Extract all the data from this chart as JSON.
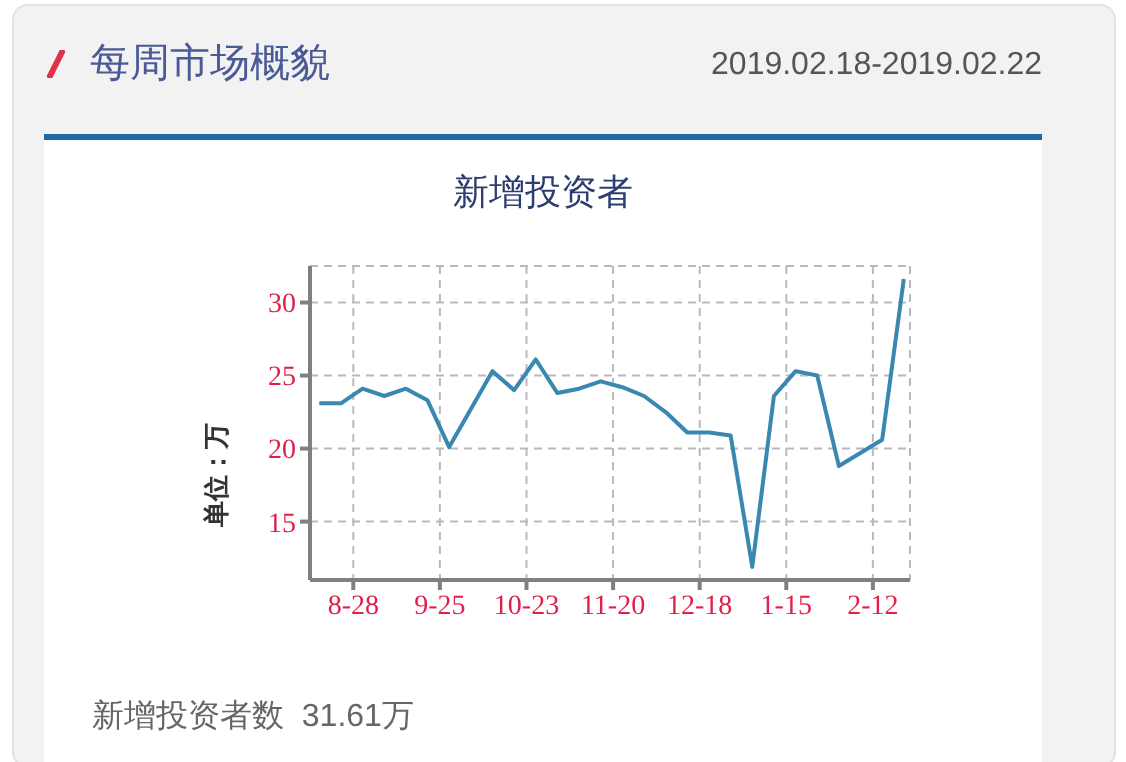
{
  "chart_data": {
    "type": "line",
    "title": "新增投资者",
    "ylabel": "单位：万",
    "annotations": [
      "每周市场概貌",
      "2019.02.18-2019.02.22",
      "新增投资者数  31.61万"
    ],
    "x": [
      "2018-08-17",
      "2018-08-24",
      "2018-08-31",
      "2018-09-07",
      "2018-09-14",
      "2018-09-21",
      "2018-09-28",
      "2018-10-12",
      "2018-10-19",
      "2018-10-26",
      "2018-11-02",
      "2018-11-09",
      "2018-11-16",
      "2018-11-23",
      "2018-11-30",
      "2018-12-07",
      "2018-12-14",
      "2018-12-21",
      "2018-12-28",
      "2019-01-04",
      "2019-01-11",
      "2019-01-18",
      "2019-01-25",
      "2019-02-01",
      "2019-02-15",
      "2019-02-22"
    ],
    "series": [
      {
        "color": "#3a87b0",
        "values": [
          23.1,
          23.1,
          24.1,
          23.6,
          24.1,
          23.3,
          20.1,
          25.3,
          24.0,
          26.1,
          23.8,
          24.1,
          24.6,
          24.2,
          23.6,
          22.5,
          21.1,
          21.1,
          20.9,
          11.9,
          23.6,
          25.3,
          25.0,
          18.8,
          20.6,
          31.61
        ]
      }
    ],
    "xlim": [
      "2018-08-14",
      "2019-02-24"
    ],
    "xticks": [
      {
        "value": "2018-08-28",
        "label": "8-28"
      },
      {
        "value": "2018-09-25",
        "label": "9-25"
      },
      {
        "value": "2018-10-23",
        "label": "10-23"
      },
      {
        "value": "2018-11-20",
        "label": "11-20"
      },
      {
        "value": "2018-12-18",
        "label": "12-18"
      },
      {
        "value": "2019-01-15",
        "label": "1-15"
      },
      {
        "value": "2019-02-12",
        "label": "2-12"
      }
    ],
    "ylim": [
      11,
      32.5
    ],
    "yticks": [
      15,
      20,
      25,
      30
    ],
    "grid": true,
    "marker": "none",
    "line_style": "solid",
    "legend": false
  }
}
